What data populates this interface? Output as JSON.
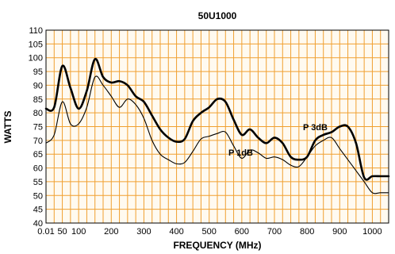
{
  "chart_data": {
    "type": "line",
    "title": "50U1000",
    "xlabel": "FREQUENCY (MHz)",
    "ylabel": "WATTS",
    "xlim": [
      0,
      1050
    ],
    "ylim": [
      40,
      110
    ],
    "x_tick_labels": [
      "0.01",
      "50",
      "100",
      "200",
      "300",
      "400",
      "500",
      "600",
      "700",
      "800",
      "900",
      "1000"
    ],
    "y_tick_labels": [
      "40",
      "45",
      "50",
      "55",
      "60",
      "65",
      "70",
      "75",
      "80",
      "85",
      "90",
      "95",
      "100",
      "105",
      "110"
    ],
    "grid": true,
    "grid_color": "#f0a030",
    "annotations": [
      "P 3dB",
      "P 1dB"
    ],
    "series": [
      {
        "name": "P 3dB",
        "line_width": "thick",
        "x": [
          0,
          25,
          50,
          75,
          100,
          125,
          150,
          175,
          200,
          225,
          250,
          275,
          300,
          325,
          350,
          375,
          400,
          425,
          450,
          475,
          500,
          525,
          550,
          575,
          600,
          625,
          650,
          675,
          700,
          725,
          750,
          775,
          800,
          825,
          850,
          875,
          900,
          925,
          950,
          975,
          1000,
          1025,
          1050
        ],
        "y": [
          81.5,
          82,
          97,
          89,
          81.5,
          88,
          99.5,
          93,
          91,
          91.5,
          90,
          86,
          84,
          79,
          74,
          71,
          69.5,
          70.5,
          77,
          80,
          82,
          85,
          84,
          77.5,
          72,
          74,
          71,
          69,
          71,
          69,
          64,
          63,
          64,
          70,
          72,
          73,
          75,
          75,
          69,
          56.5,
          57,
          57,
          57
        ]
      },
      {
        "name": "P 1dB",
        "line_width": "thin",
        "x": [
          0,
          25,
          50,
          75,
          100,
          125,
          150,
          175,
          200,
          225,
          250,
          275,
          300,
          325,
          350,
          375,
          400,
          425,
          450,
          475,
          500,
          525,
          550,
          575,
          600,
          625,
          650,
          675,
          700,
          725,
          750,
          775,
          800,
          825,
          850,
          875,
          900,
          925,
          950,
          975,
          1000,
          1025,
          1050
        ],
        "y": [
          69,
          72,
          84,
          76,
          76,
          82,
          93,
          90,
          86,
          82,
          85,
          83,
          78,
          70,
          65,
          63,
          61.5,
          62,
          66,
          70.5,
          71.5,
          72.5,
          73,
          68,
          63.5,
          66.5,
          65.5,
          63.5,
          64,
          63,
          61,
          60.5,
          64,
          68,
          70,
          71,
          67,
          63,
          59,
          55,
          51,
          51,
          51
        ]
      }
    ]
  }
}
